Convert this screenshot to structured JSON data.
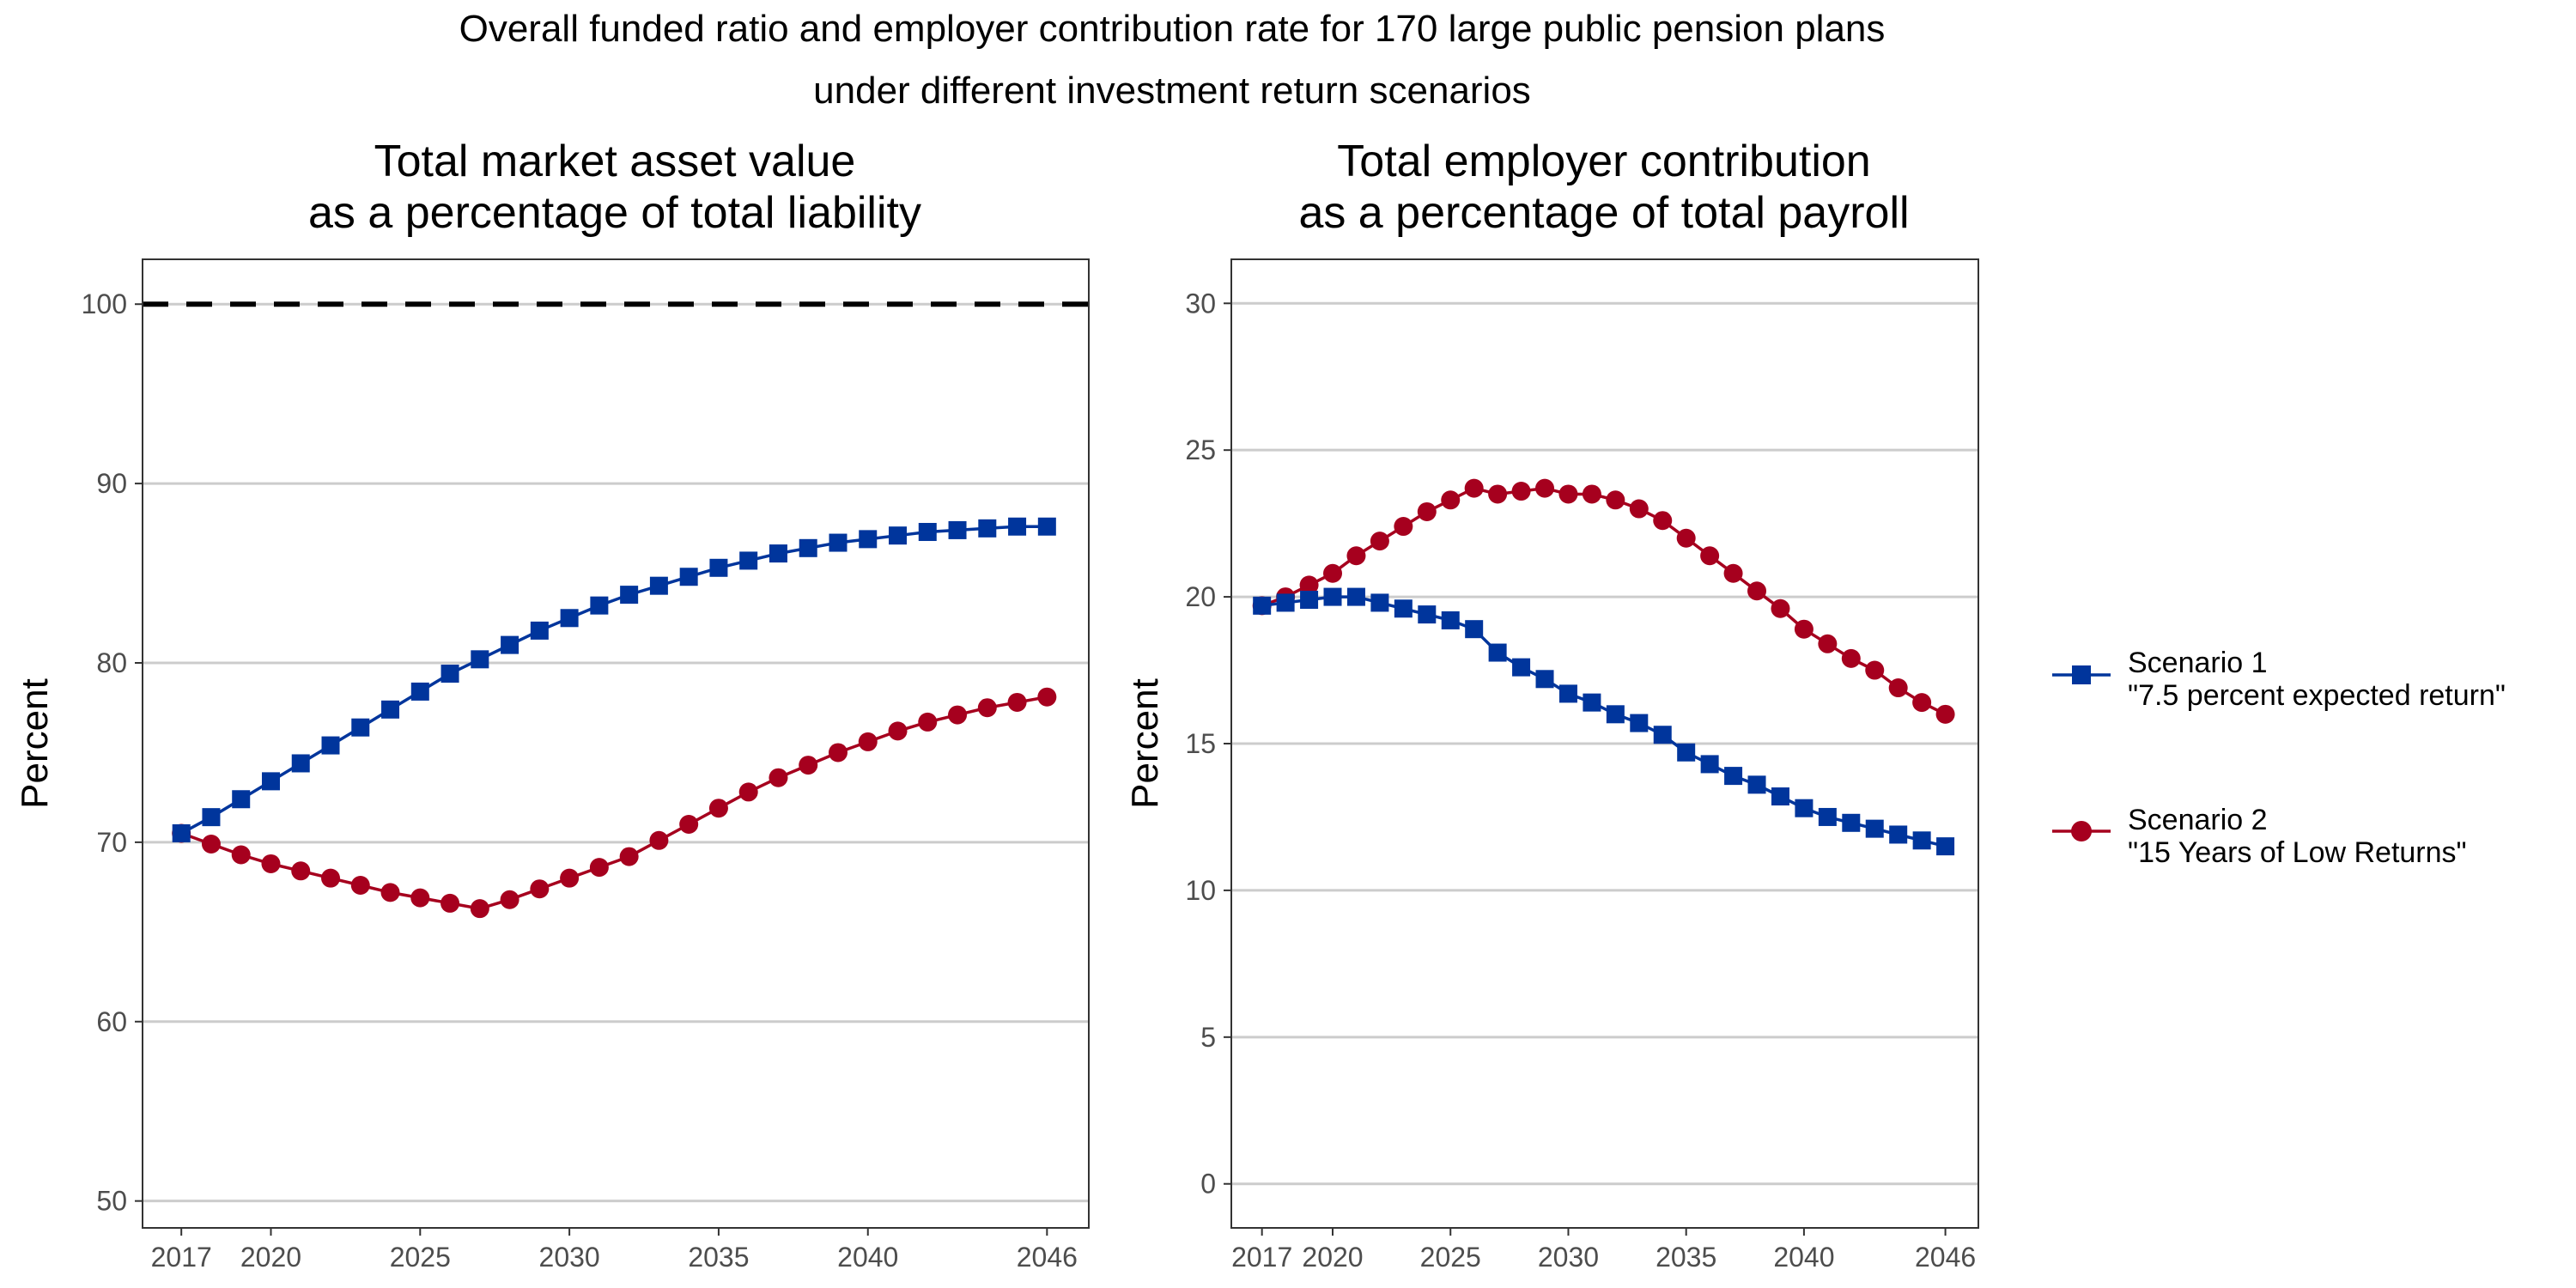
{
  "figure": {
    "title_line1": "Overall funded ratio and employer contribution rate for 170 large public pension plans",
    "title_line2": "under different investment return scenarios"
  },
  "legend": {
    "placement": "right",
    "items": [
      {
        "line1": "Scenario 1",
        "line2": "\"7.5 percent expected return\"",
        "color": "#00359c",
        "marker": "square"
      },
      {
        "line1": "Scenario 2",
        "line2": "\"15 Years of Low Returns\"",
        "color": "#a6001e",
        "marker": "circle"
      }
    ]
  },
  "chart_data": [
    {
      "type": "line",
      "title_line1": "Total market asset value",
      "title_line2": "as a percentage of total liability",
      "xlabel": "",
      "ylabel": "Percent",
      "xlim": [
        2015.7,
        2047.4
      ],
      "ylim": [
        48.5,
        102.5
      ],
      "xticks": [
        2017,
        2020,
        2025,
        2030,
        2035,
        2040,
        2046
      ],
      "yticks": [
        50,
        60,
        70,
        80,
        90,
        100
      ],
      "grid": "horizontal",
      "reference_line": {
        "y": 100,
        "style": "dashed",
        "color": "#000000"
      },
      "x": [
        2017,
        2018,
        2019,
        2020,
        2021,
        2022,
        2023,
        2024,
        2025,
        2026,
        2027,
        2028,
        2029,
        2030,
        2031,
        2032,
        2033,
        2034,
        2035,
        2036,
        2037,
        2038,
        2039,
        2040,
        2041,
        2042,
        2043,
        2044,
        2045,
        2046
      ],
      "series": [
        {
          "name": "Scenario 1 \"7.5 percent expected return\"",
          "color": "#00359c",
          "marker": "square",
          "values": [
            70.5,
            71.4,
            72.4,
            73.4,
            74.4,
            75.4,
            76.4,
            77.4,
            78.4,
            79.4,
            80.2,
            81.0,
            81.8,
            82.5,
            83.2,
            83.8,
            84.3,
            84.8,
            85.3,
            85.7,
            86.1,
            86.4,
            86.7,
            86.9,
            87.1,
            87.3,
            87.4,
            87.5,
            87.6,
            87.6
          ]
        },
        {
          "name": "Scenario 2 \"15 Years of Low Returns\"",
          "color": "#a6001e",
          "marker": "circle",
          "values": [
            70.5,
            69.9,
            69.3,
            68.8,
            68.4,
            68.0,
            67.6,
            67.2,
            66.9,
            66.6,
            66.3,
            66.8,
            67.4,
            68.0,
            68.6,
            69.2,
            70.1,
            71.0,
            71.9,
            72.8,
            73.6,
            74.3,
            75.0,
            75.6,
            76.2,
            76.7,
            77.1,
            77.5,
            77.8,
            78.1
          ]
        }
      ]
    },
    {
      "type": "line",
      "title_line1": "Total employer contribution",
      "title_line2": "as a percentage of total payroll",
      "xlabel": "",
      "ylabel": "Percent",
      "xlim": [
        2015.7,
        2047.4
      ],
      "ylim": [
        -1.5,
        31.5
      ],
      "xticks": [
        2017,
        2020,
        2025,
        2030,
        2035,
        2040,
        2046
      ],
      "yticks": [
        0,
        5,
        10,
        15,
        20,
        25,
        30
      ],
      "grid": "horizontal",
      "x": [
        2017,
        2018,
        2019,
        2020,
        2021,
        2022,
        2023,
        2024,
        2025,
        2026,
        2027,
        2028,
        2029,
        2030,
        2031,
        2032,
        2033,
        2034,
        2035,
        2036,
        2037,
        2038,
        2039,
        2040,
        2041,
        2042,
        2043,
        2044,
        2045,
        2046
      ],
      "series": [
        {
          "name": "Scenario 1 \"7.5 percent expected return\"",
          "color": "#00359c",
          "marker": "square",
          "values": [
            19.7,
            19.8,
            19.9,
            20.0,
            20.0,
            19.8,
            19.6,
            19.4,
            19.2,
            18.9,
            18.1,
            17.6,
            17.2,
            16.7,
            16.4,
            16.0,
            15.7,
            15.3,
            14.7,
            14.3,
            13.9,
            13.6,
            13.2,
            12.8,
            12.5,
            12.3,
            12.1,
            11.9,
            11.7,
            11.5
          ]
        },
        {
          "name": "Scenario 2 \"15 Years of Low Returns\"",
          "color": "#a6001e",
          "marker": "circle",
          "values": [
            19.7,
            20.0,
            20.4,
            20.8,
            21.4,
            21.9,
            22.4,
            22.9,
            23.3,
            23.7,
            23.5,
            23.6,
            23.7,
            23.5,
            23.5,
            23.3,
            23.0,
            22.6,
            22.0,
            21.4,
            20.8,
            20.2,
            19.6,
            18.9,
            18.4,
            17.9,
            17.5,
            16.9,
            16.4,
            16.0
          ]
        }
      ]
    }
  ]
}
